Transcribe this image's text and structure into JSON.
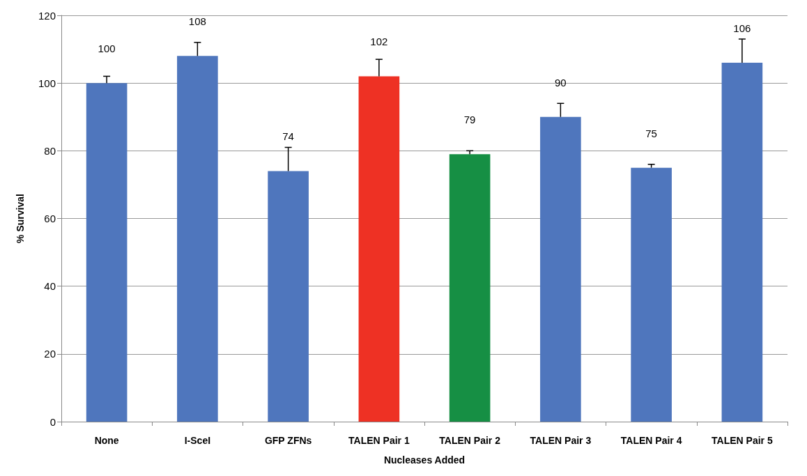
{
  "chart_data": {
    "type": "bar",
    "xlabel": "Nucleases Added",
    "ylabel": "% Survival",
    "categories": [
      "None",
      "I-SceI",
      "GFP ZFNs",
      "TALEN Pair 1",
      "TALEN Pair 2",
      "TALEN Pair 3",
      "TALEN Pair 4",
      "TALEN Pair 5"
    ],
    "values": [
      100,
      108,
      74,
      102,
      79,
      90,
      75,
      106
    ],
    "colors": [
      "#4f76bd",
      "#4f76bd",
      "#4f76bd",
      "#ee3124",
      "#168f44",
      "#4f76bd",
      "#4f76bd",
      "#4f76bd"
    ],
    "errors": [
      [
        100,
        102
      ],
      [
        108,
        112
      ],
      [
        74,
        81
      ],
      [
        102,
        107
      ],
      [
        79,
        80
      ],
      [
        90,
        94
      ],
      [
        75,
        76
      ],
      [
        106,
        113
      ]
    ],
    "ylim": [
      0,
      120
    ],
    "yticks": [
      0,
      20,
      40,
      60,
      80,
      100,
      120
    ],
    "grid": "y",
    "data_labels": true
  }
}
